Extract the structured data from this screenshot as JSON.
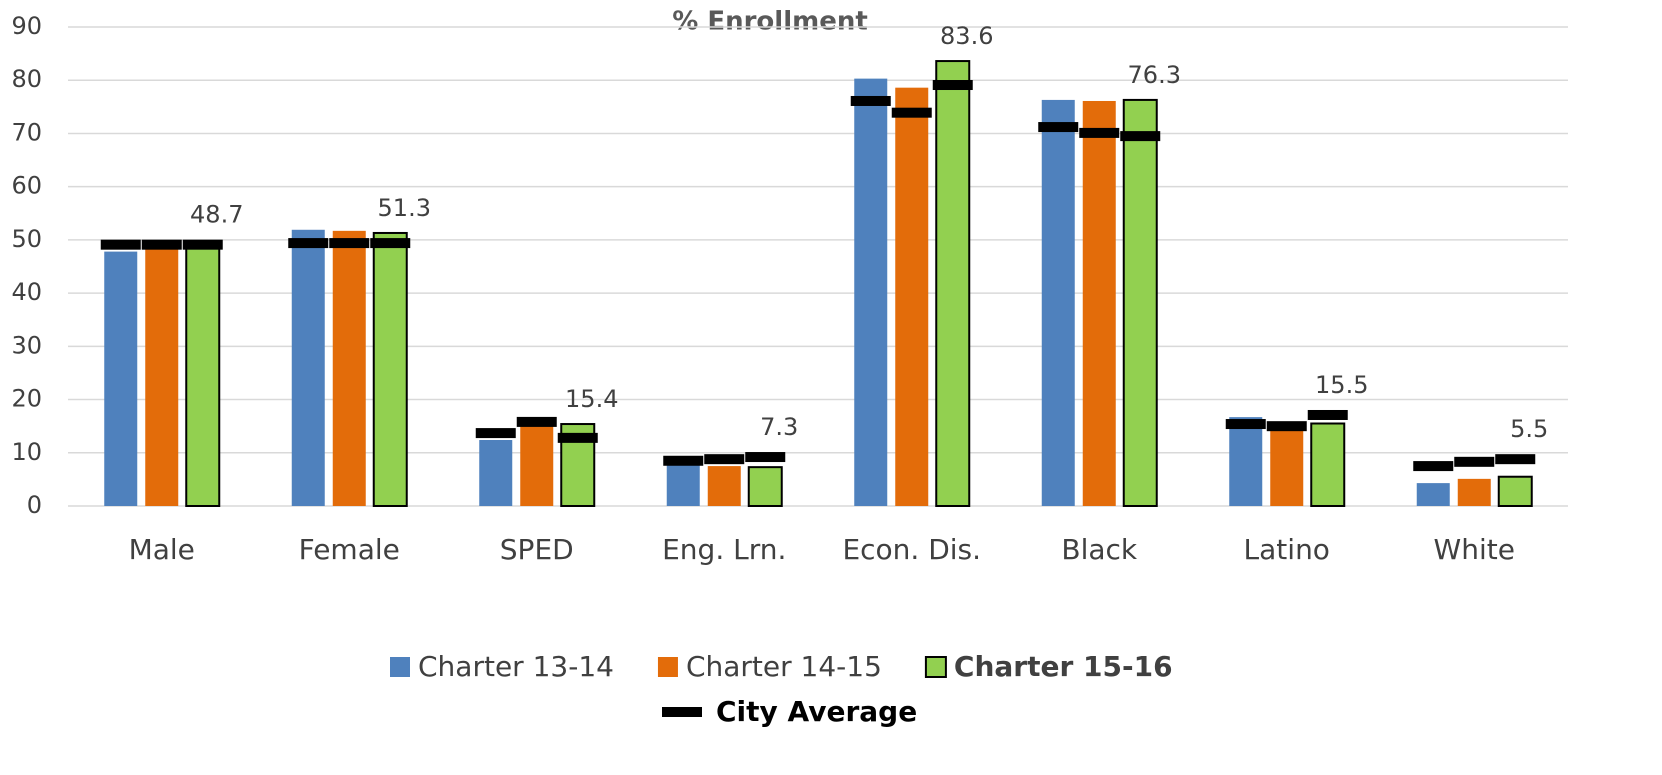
{
  "chart_data": {
    "type": "bar",
    "title": "% Enrollment",
    "categories": [
      "Male",
      "Female",
      "SPED",
      "Eng. Lrn.",
      "Econ. Dis.",
      "Black",
      "Latino",
      "White"
    ],
    "series": [
      {
        "name": "Charter 13-14",
        "color": "#4f81bd",
        "values": [
          47.8,
          51.9,
          12.4,
          7.7,
          80.3,
          76.3,
          16.7,
          4.3
        ]
      },
      {
        "name": "Charter 14-15",
        "color": "#e36c0a",
        "values": [
          48.8,
          51.7,
          15.5,
          7.5,
          78.6,
          76.1,
          15.2,
          5.1
        ]
      },
      {
        "name": "Charter 15-16",
        "color": "#92d050",
        "edgecolor": "#000000",
        "legend_bold": true,
        "show_labels": true,
        "values": [
          48.7,
          51.3,
          15.4,
          7.3,
          83.6,
          76.3,
          15.5,
          5.5
        ]
      }
    ],
    "markers": {
      "name": "City Average",
      "color": "#000000",
      "legend_bold": true,
      "values": [
        [
          49.1,
          49.4,
          13.7,
          8.5,
          76.1,
          71.2,
          15.4,
          7.5
        ],
        [
          49.1,
          49.4,
          15.8,
          8.8,
          73.9,
          70.1,
          15.0,
          8.3
        ],
        [
          49.1,
          49.4,
          12.8,
          9.2,
          79.1,
          69.5,
          17.1,
          8.8
        ]
      ]
    },
    "ylim": [
      0,
      90
    ],
    "yticks": [
      0,
      10,
      20,
      30,
      40,
      50,
      60,
      70,
      80,
      90
    ],
    "grid": true
  }
}
